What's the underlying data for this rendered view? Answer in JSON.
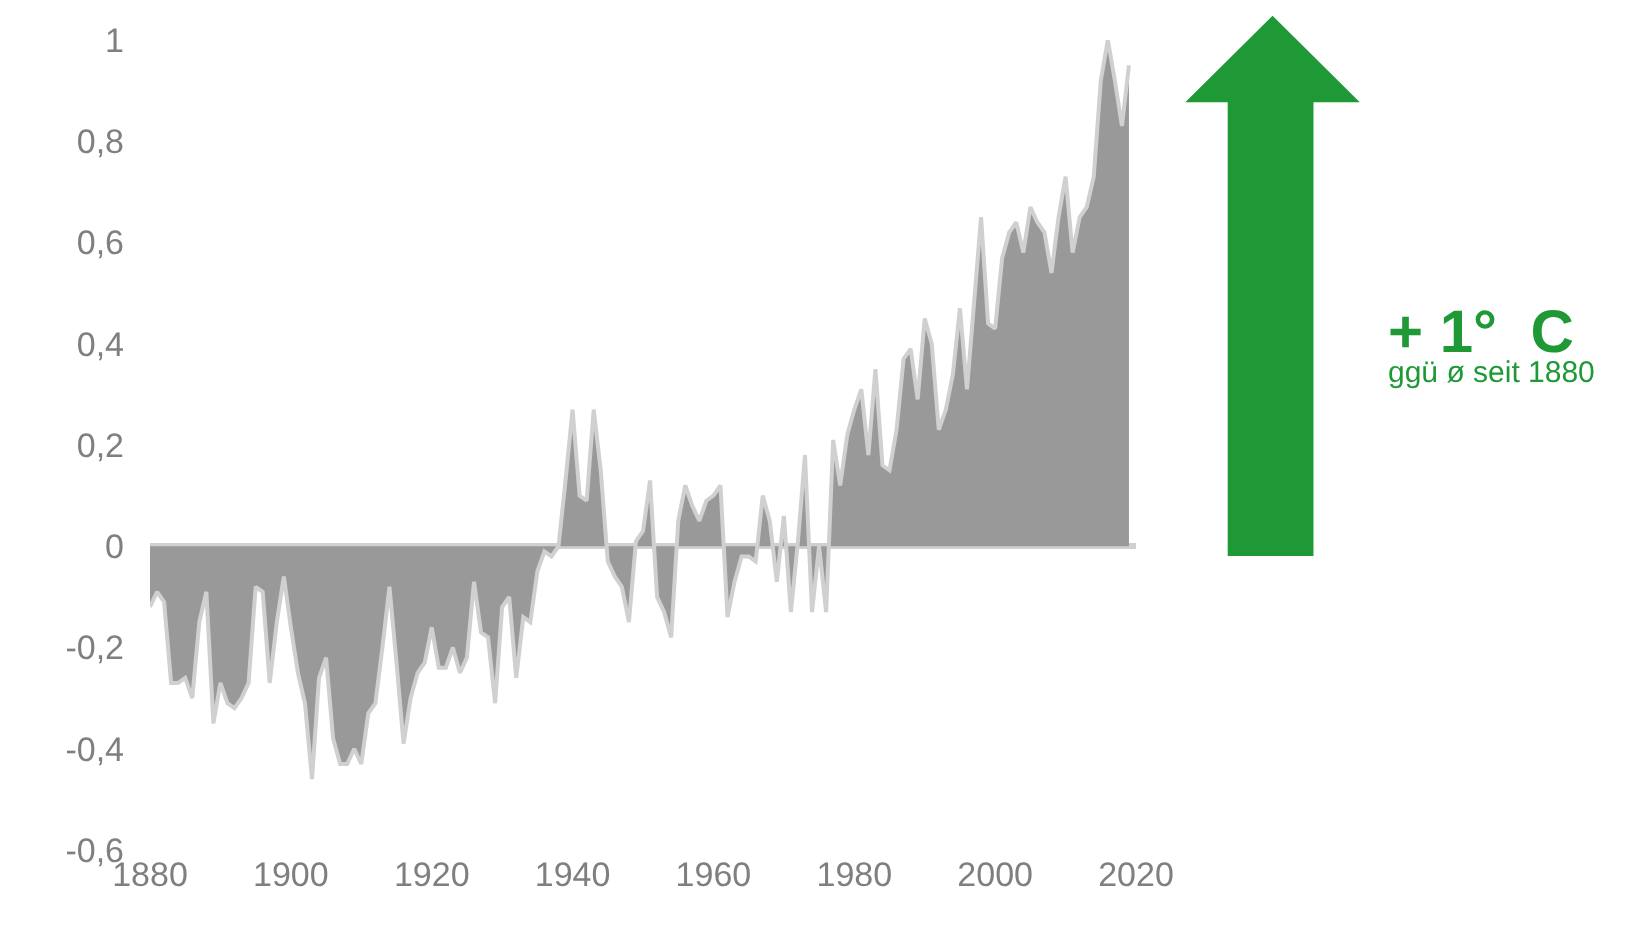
{
  "chart_data": {
    "type": "area",
    "x": [
      1880,
      1881,
      1882,
      1883,
      1884,
      1885,
      1886,
      1887,
      1888,
      1889,
      1890,
      1891,
      1892,
      1893,
      1894,
      1895,
      1896,
      1897,
      1898,
      1899,
      1900,
      1901,
      1902,
      1903,
      1904,
      1905,
      1906,
      1907,
      1908,
      1909,
      1910,
      1911,
      1912,
      1913,
      1914,
      1915,
      1916,
      1917,
      1918,
      1919,
      1920,
      1921,
      1922,
      1923,
      1924,
      1925,
      1926,
      1927,
      1928,
      1929,
      1930,
      1931,
      1932,
      1933,
      1934,
      1935,
      1936,
      1937,
      1938,
      1939,
      1940,
      1941,
      1942,
      1943,
      1944,
      1945,
      1946,
      1947,
      1948,
      1949,
      1950,
      1951,
      1952,
      1953,
      1954,
      1955,
      1956,
      1957,
      1958,
      1959,
      1960,
      1961,
      1962,
      1963,
      1964,
      1965,
      1966,
      1967,
      1968,
      1969,
      1970,
      1971,
      1972,
      1973,
      1974,
      1975,
      1976,
      1977,
      1978,
      1979,
      1980,
      1981,
      1982,
      1983,
      1984,
      1985,
      1986,
      1987,
      1988,
      1989,
      1990,
      1991,
      1992,
      1993,
      1994,
      1995,
      1996,
      1997,
      1998,
      1999,
      2000,
      2001,
      2002,
      2003,
      2004,
      2005,
      2006,
      2007,
      2008,
      2009,
      2010,
      2011,
      2012,
      2013,
      2014,
      2015,
      2016,
      2017,
      2018,
      2019
    ],
    "series": [
      {
        "color": "#999999",
        "values": [
          -0.12,
          -0.09,
          -0.11,
          -0.27,
          -0.27,
          -0.26,
          -0.3,
          -0.15,
          -0.09,
          -0.35,
          -0.27,
          -0.31,
          -0.32,
          -0.3,
          -0.27,
          -0.08,
          -0.09,
          -0.27,
          -0.15,
          -0.06,
          -0.16,
          -0.25,
          -0.31,
          -0.46,
          -0.26,
          -0.22,
          -0.38,
          -0.43,
          -0.43,
          -0.4,
          -0.43,
          -0.33,
          -0.31,
          -0.2,
          -0.08,
          -0.23,
          -0.39,
          -0.3,
          -0.25,
          -0.23,
          -0.16,
          -0.24,
          -0.24,
          -0.2,
          -0.25,
          -0.22,
          -0.07,
          -0.17,
          -0.18,
          -0.31,
          -0.12,
          -0.1,
          -0.26,
          -0.14,
          -0.15,
          -0.05,
          -0.01,
          -0.02,
          0.0,
          0.13,
          0.27,
          0.1,
          0.09,
          0.27,
          0.15,
          -0.03,
          -0.06,
          -0.08,
          -0.15,
          0.01,
          0.03,
          0.13,
          -0.1,
          -0.13,
          -0.18,
          0.05,
          0.12,
          0.08,
          0.05,
          0.09,
          0.1,
          0.12,
          -0.14,
          -0.07,
          -0.02,
          -0.02,
          -0.03,
          0.1,
          0.05,
          -0.07,
          0.06,
          -0.13,
          0.01,
          0.18,
          -0.13,
          0.0,
          -0.13,
          0.21,
          0.12,
          0.22,
          0.27,
          0.31,
          0.18,
          0.35,
          0.16,
          0.15,
          0.23,
          0.37,
          0.39,
          0.29,
          0.45,
          0.4,
          0.23,
          0.27,
          0.34,
          0.47,
          0.31,
          0.48,
          0.65,
          0.44,
          0.43,
          0.57,
          0.62,
          0.64,
          0.58,
          0.67,
          0.64,
          0.62,
          0.54,
          0.65,
          0.73,
          0.58,
          0.65,
          0.67,
          0.73,
          0.92,
          1.0,
          0.92,
          0.83,
          0.95
        ]
      }
    ],
    "xlim": [
      1880,
      2020
    ],
    "xticks": [
      1880,
      1900,
      1920,
      1940,
      1960,
      1980,
      2000,
      2020
    ],
    "ylim": [
      -0.6,
      1
    ],
    "yticks": [
      {
        "value": -0.6,
        "label": "-0,6"
      },
      {
        "value": -0.4,
        "label": "-0,4"
      },
      {
        "value": -0.2,
        "label": "-0,2"
      },
      0,
      {
        "value": 0.2,
        "label": "0,2"
      },
      {
        "value": 0.4,
        "label": "0,4"
      },
      {
        "value": 0.6,
        "label": "0,6"
      },
      {
        "value": 0.8,
        "label": "0,8"
      },
      1
    ],
    "annotations": [
      "+ 1°  C",
      "ggü ø seit 1880"
    ]
  }
}
